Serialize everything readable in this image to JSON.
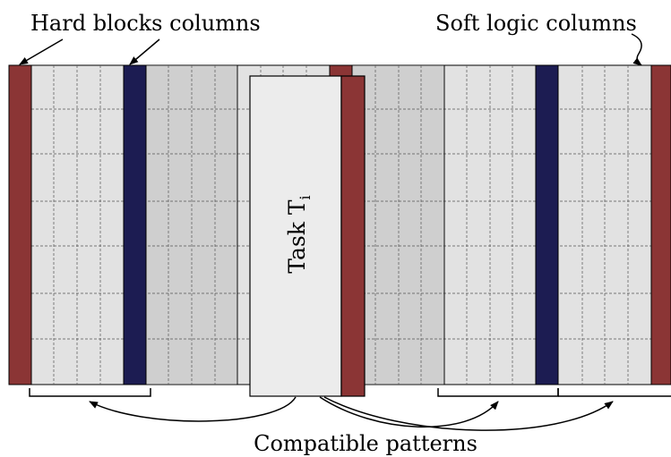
{
  "labels": {
    "hard_blocks": "Hard blocks columns",
    "soft_logic": "Soft logic columns",
    "task": "Task T",
    "task_subscript": "i",
    "compatible": "Compatible patterns"
  },
  "colors": {
    "hard_red": "#8b3535",
    "hard_blue": "#1c1c52",
    "light_column": "#e2e2e2",
    "dark_column": "#cfcfcf",
    "task_fill": "#ececec",
    "grid_line": "#555555"
  }
}
